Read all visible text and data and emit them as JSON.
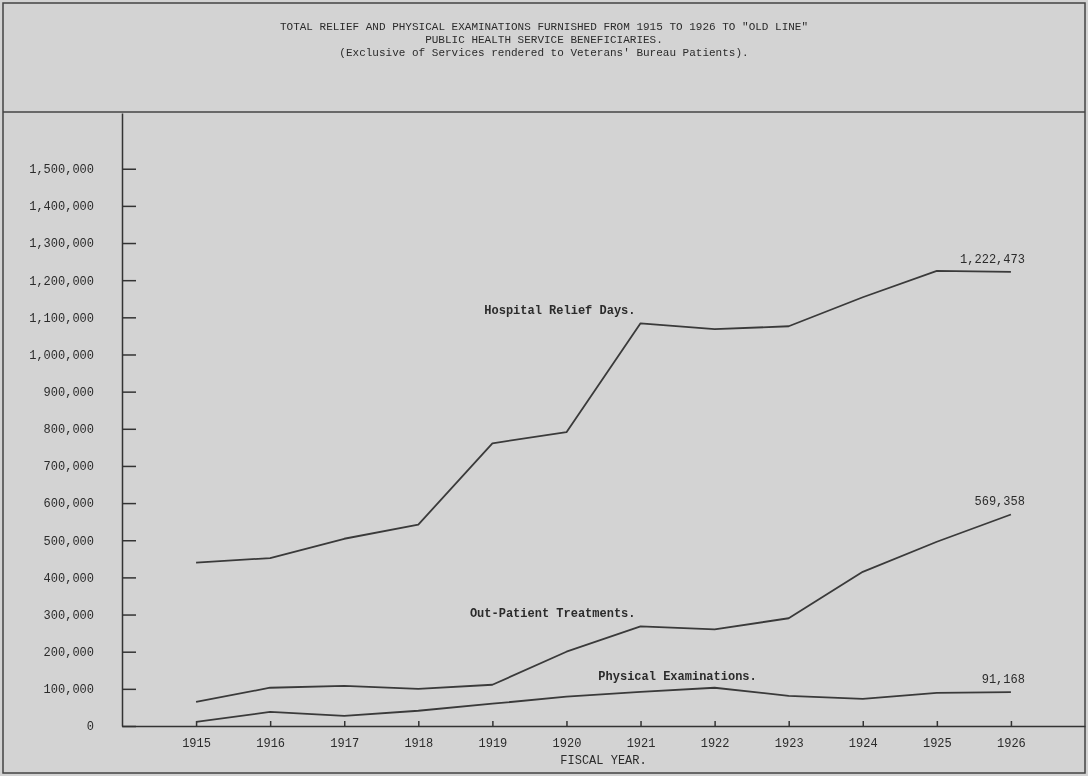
{
  "chart_data": {
    "type": "line",
    "title": "TOTAL RELIEF AND PHYSICAL EXAMINATIONS FURNISHED FROM 1915 TO 1926 TO \"OLD LINE\" PUBLIC HEALTH SERVICE BENEFICIARIES.",
    "subtitle": "(Exclusive of Services rendered to Veterans' Bureau Patients).",
    "xlabel": "FISCAL YEAR.",
    "x": [
      1915,
      1916,
      1917,
      1918,
      1919,
      1920,
      1921,
      1922,
      1923,
      1924,
      1925,
      1926
    ],
    "xlim": [
      1914,
      1927
    ],
    "xticks": [
      1915,
      1916,
      1917,
      1918,
      1919,
      1920,
      1921,
      1922,
      1923,
      1924,
      1925,
      1926
    ],
    "ylim": [
      0,
      1650000
    ],
    "yticks": [
      0,
      {
        "value": 100000,
        "label": "100,000"
      },
      {
        "value": 200000,
        "label": "200,000"
      },
      {
        "value": 300000,
        "label": "300,000"
      },
      {
        "value": 400000,
        "label": "400,000"
      },
      {
        "value": 500000,
        "label": "500,000"
      },
      {
        "value": 600000,
        "label": "600,000"
      },
      {
        "value": 700000,
        "label": "700,000"
      },
      {
        "value": 800000,
        "label": "800,000"
      },
      {
        "value": 900000,
        "label": "900,000"
      },
      {
        "value": 1000000,
        "label": "1,000,000"
      },
      {
        "value": 1100000,
        "label": "1,100,000"
      },
      {
        "value": 1200000,
        "label": "1,200,000"
      },
      {
        "value": 1300000,
        "label": "1,300,000"
      },
      {
        "value": 1400000,
        "label": "1,400,000"
      },
      {
        "value": 1500000,
        "label": "1,500,000"
      }
    ],
    "series": [
      {
        "name": "Hospital Relief Days.",
        "color": "#3a3a3a",
        "values": [
          440000,
          452000,
          504000,
          542000,
          761000,
          791000,
          1084000,
          1068000,
          1076000,
          1154000,
          1225000,
          1222473
        ],
        "value_labels": [
          null,
          null,
          null,
          null,
          null,
          null,
          null,
          null,
          null,
          null,
          null,
          "1,222,473"
        ]
      },
      {
        "name": "Out-Patient Treatments.",
        "color": "#3a3a3a",
        "values": [
          65000,
          103000,
          108000,
          100000,
          111000,
          200000,
          268000,
          260000,
          290000,
          415000,
          496000,
          569358
        ],
        "value_labels": [
          null,
          null,
          null,
          null,
          null,
          null,
          null,
          null,
          null,
          null,
          null,
          "569,358"
        ]
      },
      {
        "name": "Physical Examinations.",
        "color": "#3a3a3a",
        "values": [
          11000,
          38000,
          27000,
          41000,
          60000,
          79000,
          92000,
          103000,
          81000,
          73000,
          89000,
          91168
        ],
        "value_labels": [
          null,
          null,
          null,
          null,
          null,
          null,
          null,
          null,
          null,
          null,
          null,
          "91,168"
        ]
      }
    ],
    "grid": false,
    "legend": false,
    "marker": "none",
    "line_style": "solid"
  }
}
